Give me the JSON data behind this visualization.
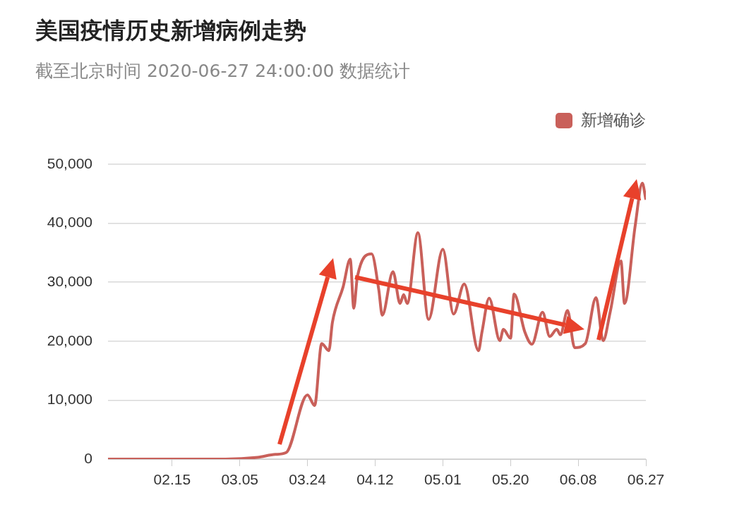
{
  "chart_data": {
    "type": "line",
    "title": "美国疫情历史新增病例走势",
    "subtitle": "截至北京时间 2020-06-27 24:00:00 数据统计",
    "x": [
      "2020-01-28",
      "2020-03-01",
      "2020-03-10",
      "2020-03-15",
      "2020-03-18",
      "2020-03-24",
      "2020-03-26",
      "2020-03-28",
      "2020-03-30",
      "2020-03-31",
      "2020-04-03",
      "2020-04-05",
      "2020-04-06",
      "2020-04-07",
      "2020-04-11",
      "2020-04-13",
      "2020-04-14",
      "2020-04-17",
      "2020-04-19",
      "2020-04-20",
      "2020-04-21",
      "2020-04-24",
      "2020-04-27",
      "2020-05-01",
      "2020-05-04",
      "2020-05-07",
      "2020-05-11",
      "2020-05-12",
      "2020-05-14",
      "2020-05-17",
      "2020-05-18",
      "2020-05-20",
      "2020-05-21",
      "2020-05-24",
      "2020-05-26",
      "2020-05-29",
      "2020-05-31",
      "2020-06-02",
      "2020-06-03",
      "2020-06-05",
      "2020-06-07",
      "2020-06-10",
      "2020-06-13",
      "2020-06-15",
      "2020-06-17",
      "2020-06-20",
      "2020-06-21",
      "2020-06-24",
      "2020-06-26",
      "2020-06-27"
    ],
    "series": [
      {
        "name": "新增确诊",
        "color": "#c9605a",
        "values": [
          0,
          0,
          300,
          800,
          1100,
          10900,
          9100,
          19600,
          18400,
          23200,
          29200,
          33900,
          25600,
          30900,
          34800,
          28800,
          24400,
          31800,
          26400,
          27900,
          26400,
          38400,
          23700,
          35600,
          24600,
          29700,
          18400,
          21600,
          27300,
          20100,
          22000,
          20500,
          28000,
          21600,
          19500,
          24900,
          20800,
          22000,
          21100,
          25200,
          18900,
          19600,
          27400,
          20100,
          25000,
          33600,
          26400,
          39600,
          46800,
          44000
        ]
      }
    ],
    "xlim": [
      "2020-01-28",
      "2020-06-27"
    ],
    "xticks": [
      {
        "value": "2020-02-15",
        "label": "02.15"
      },
      {
        "value": "2020-03-05",
        "label": "03.05"
      },
      {
        "value": "2020-03-24",
        "label": "03.24"
      },
      {
        "value": "2020-04-12",
        "label": "04.12"
      },
      {
        "value": "2020-05-01",
        "label": "05.01"
      },
      {
        "value": "2020-05-20",
        "label": "05.20"
      },
      {
        "value": "2020-06-08",
        "label": "06.08"
      },
      {
        "value": "2020-06-27",
        "label": "06.27"
      }
    ],
    "ylim": [
      0,
      50000
    ],
    "yticks": [
      0,
      {
        "value": 10000,
        "label": "10,000"
      },
      {
        "value": 20000,
        "label": "20,000"
      },
      {
        "value": 30000,
        "label": "30,000"
      },
      {
        "value": 40000,
        "label": "40,000"
      },
      {
        "value": 50000,
        "label": "50,000"
      }
    ],
    "grid": "y",
    "legend": "top right",
    "marker": "none"
  }
}
